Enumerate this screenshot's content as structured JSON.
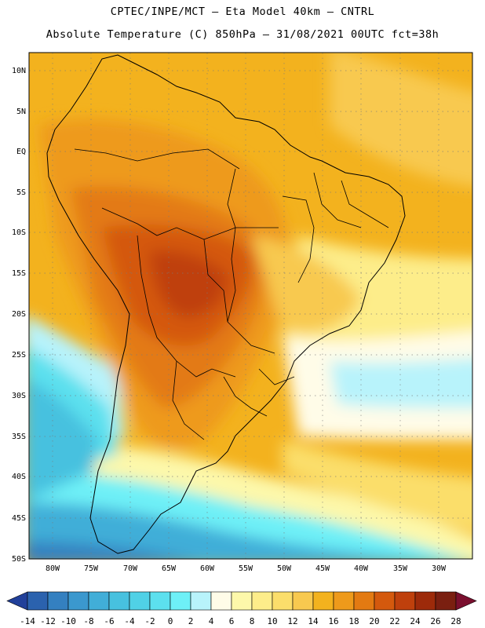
{
  "title": {
    "line1": "CPTEC/INPE/MCT –  Eta Model 40km – CNTRL",
    "line2": "Absolute Temperature (C) 850hPa – 31/08/2021 00UTC fct=38h"
  },
  "axes": {
    "lat_labels": [
      "10N",
      "5N",
      "EQ",
      "5S",
      "10S",
      "15S",
      "20S",
      "25S",
      "30S",
      "35S",
      "40S",
      "45S",
      "50S"
    ],
    "lon_labels": [
      "80W",
      "75W",
      "70W",
      "65W",
      "60W",
      "55W",
      "50W",
      "45W",
      "40W",
      "35W",
      "30W"
    ]
  },
  "colorbar": {
    "labels": [
      "-14",
      "-12",
      "-10",
      "-8",
      "-6",
      "-4",
      "-2",
      "0",
      "2",
      "4",
      "6",
      "8",
      "10",
      "12",
      "14",
      "16",
      "18",
      "20",
      "22",
      "24",
      "26",
      "28"
    ],
    "colors": [
      "#21409a",
      "#2b62ae",
      "#3480c0",
      "#3b98ce",
      "#41aed8",
      "#47c1df",
      "#50d1e6",
      "#5ce0ee",
      "#6ef0f7",
      "#b8f3fb",
      "#fffce8",
      "#fdf8aa",
      "#fded8a",
      "#fbde6b",
      "#f8c94f",
      "#f3b21e",
      "#ee9a1b",
      "#e37a12",
      "#d4590d",
      "#bf400c",
      "#9d2a0a",
      "#7a1f10",
      "#7a0f2e"
    ]
  },
  "map_features": {
    "temperature_fill": "absolute-temperature-850hPa",
    "coastline": "south-america-coast",
    "borders": "country-and-state-borders"
  }
}
